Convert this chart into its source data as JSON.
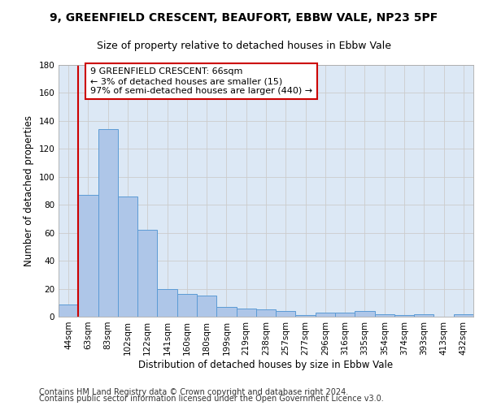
{
  "title1": "9, GREENFIELD CRESCENT, BEAUFORT, EBBW VALE, NP23 5PF",
  "title2": "Size of property relative to detached houses in Ebbw Vale",
  "xlabel": "Distribution of detached houses by size in Ebbw Vale",
  "ylabel": "Number of detached properties",
  "categories": [
    "44sqm",
    "63sqm",
    "83sqm",
    "102sqm",
    "122sqm",
    "141sqm",
    "160sqm",
    "180sqm",
    "199sqm",
    "219sqm",
    "238sqm",
    "257sqm",
    "277sqm",
    "296sqm",
    "316sqm",
    "335sqm",
    "354sqm",
    "374sqm",
    "393sqm",
    "413sqm",
    "432sqm"
  ],
  "values": [
    9,
    87,
    134,
    86,
    62,
    20,
    16,
    15,
    7,
    6,
    5,
    4,
    1,
    3,
    3,
    4,
    2,
    1,
    2,
    0,
    2
  ],
  "bar_color": "#aec6e8",
  "bar_edge_color": "#5b9bd5",
  "vline_x_index": 1,
  "vline_color": "#cc0000",
  "annotation_text": "9 GREENFIELD CRESCENT: 66sqm\n← 3% of detached houses are smaller (15)\n97% of semi-detached houses are larger (440) →",
  "annotation_box_color": "#ffffff",
  "annotation_box_edge": "#cc0000",
  "ylim": [
    0,
    180
  ],
  "yticks": [
    0,
    20,
    40,
    60,
    80,
    100,
    120,
    140,
    160,
    180
  ],
  "grid_color": "#cccccc",
  "bg_color": "#dce8f5",
  "footer1": "Contains HM Land Registry data © Crown copyright and database right 2024.",
  "footer2": "Contains public sector information licensed under the Open Government Licence v3.0.",
  "title1_fontsize": 10,
  "title2_fontsize": 9,
  "axis_label_fontsize": 8.5,
  "tick_fontsize": 7.5,
  "annotation_fontsize": 8,
  "footer_fontsize": 7
}
